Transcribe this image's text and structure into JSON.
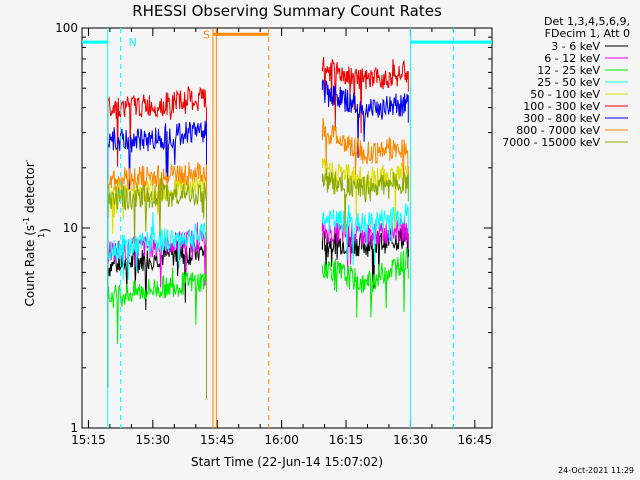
{
  "chart_data": {
    "type": "line",
    "title": "RHESSI Observing Summary Count Rates",
    "xlabel": "Start Time (22-Jun-14 15:07:02)",
    "ylabel_main": "Count Rate (s",
    "ylabel_sup1": "-1",
    "ylabel_mid": " detector",
    "ylabel_sup2": "-1",
    "ylabel_end": ")",
    "y_scale": "log",
    "ylim": [
      1,
      100
    ],
    "xlim_min": [
      6.5,
      102
    ],
    "x_ticks": [
      {
        "min": 8,
        "label": "15:15"
      },
      {
        "min": 23,
        "label": "15:30"
      },
      {
        "min": 38,
        "label": "15:45"
      },
      {
        "min": 53,
        "label": "16:00"
      },
      {
        "min": 68,
        "label": "16:15"
      },
      {
        "min": 83,
        "label": "16:30"
      },
      {
        "min": 98,
        "label": "16:45"
      }
    ],
    "y_ticks": [
      {
        "value": 1,
        "label": "1"
      },
      {
        "value": 10,
        "label": "10"
      },
      {
        "value": 100,
        "label": "100"
      }
    ],
    "legend_placement": "right",
    "legend_header": [
      "Det 1,3,4,5,6,9,",
      "FDecim 1, Att 0"
    ],
    "segments": [
      {
        "start": 12.5,
        "end": 35.5
      },
      {
        "start": 62.5,
        "end": 82.5
      }
    ],
    "series": [
      {
        "name": "3 - 6 keV",
        "color": "#000000",
        "seg1": [
          6.4,
          7.2,
          7.6
        ],
        "seg2": [
          8.6,
          8.2,
          9.0
        ]
      },
      {
        "name": "6 - 12 keV",
        "color": "#ee00ee",
        "seg1": [
          7.6,
          8.2,
          8.8
        ],
        "seg2": [
          9.6,
          9.2,
          9.8
        ]
      },
      {
        "name": "12 - 25 keV",
        "color": "#00ee00",
        "seg1": [
          4.5,
          5.0,
          5.5
        ],
        "seg2": [
          6.5,
          5.2,
          7.0
        ]
      },
      {
        "name": "25 - 50 keV",
        "color": "#00ffff",
        "seg1": [
          7.8,
          8.6,
          9.3
        ],
        "seg2": [
          11.0,
          10.4,
          11.8
        ]
      },
      {
        "name": "50 - 100 keV",
        "color": "#dddd00",
        "seg1": [
          14.8,
          15.6,
          16.4
        ],
        "seg2": [
          20.0,
          17.5,
          19.0
        ]
      },
      {
        "name": "100 - 300 keV",
        "color": "#ee0000",
        "seg1": [
          40.0,
          41.0,
          44.0
        ],
        "seg2": [
          63.0,
          54.0,
          60.0
        ]
      },
      {
        "name": "300 - 800 keV",
        "color": "#0000ee",
        "seg1": [
          26.5,
          28.0,
          31.5
        ],
        "seg2": [
          49.0,
          38.5,
          42.0
        ]
      },
      {
        "name": "800 - 7000 keV",
        "color": "#ff8800",
        "seg1": [
          17.5,
          18.0,
          19.0
        ],
        "seg2": [
          31.0,
          23.5,
          25.5
        ]
      },
      {
        "name": "7000 - 15000 keV",
        "color": "#88aa00",
        "seg1": [
          14.0,
          14.5,
          15.0
        ],
        "seg2": [
          17.0,
          16.0,
          17.0
        ]
      }
    ],
    "flags": {
      "night": {
        "label": "N",
        "color": "#00ffff",
        "level_value": 85,
        "bars": [
          {
            "start": 6.5,
            "end": 12.5
          },
          {
            "start": 83,
            "end": 102
          }
        ],
        "solid_lines": [
          12.5,
          83
        ],
        "dashed_lines": [
          15.5,
          93
        ]
      },
      "saa": {
        "label": "S",
        "color": "#ff8800",
        "level_value": 93,
        "bars": [
          {
            "start": 37,
            "end": 50
          }
        ],
        "solid_lines": [
          37,
          37.8
        ],
        "dashed_lines": [
          50
        ]
      }
    },
    "timestamp": "24-Oct-2021 11:29"
  }
}
